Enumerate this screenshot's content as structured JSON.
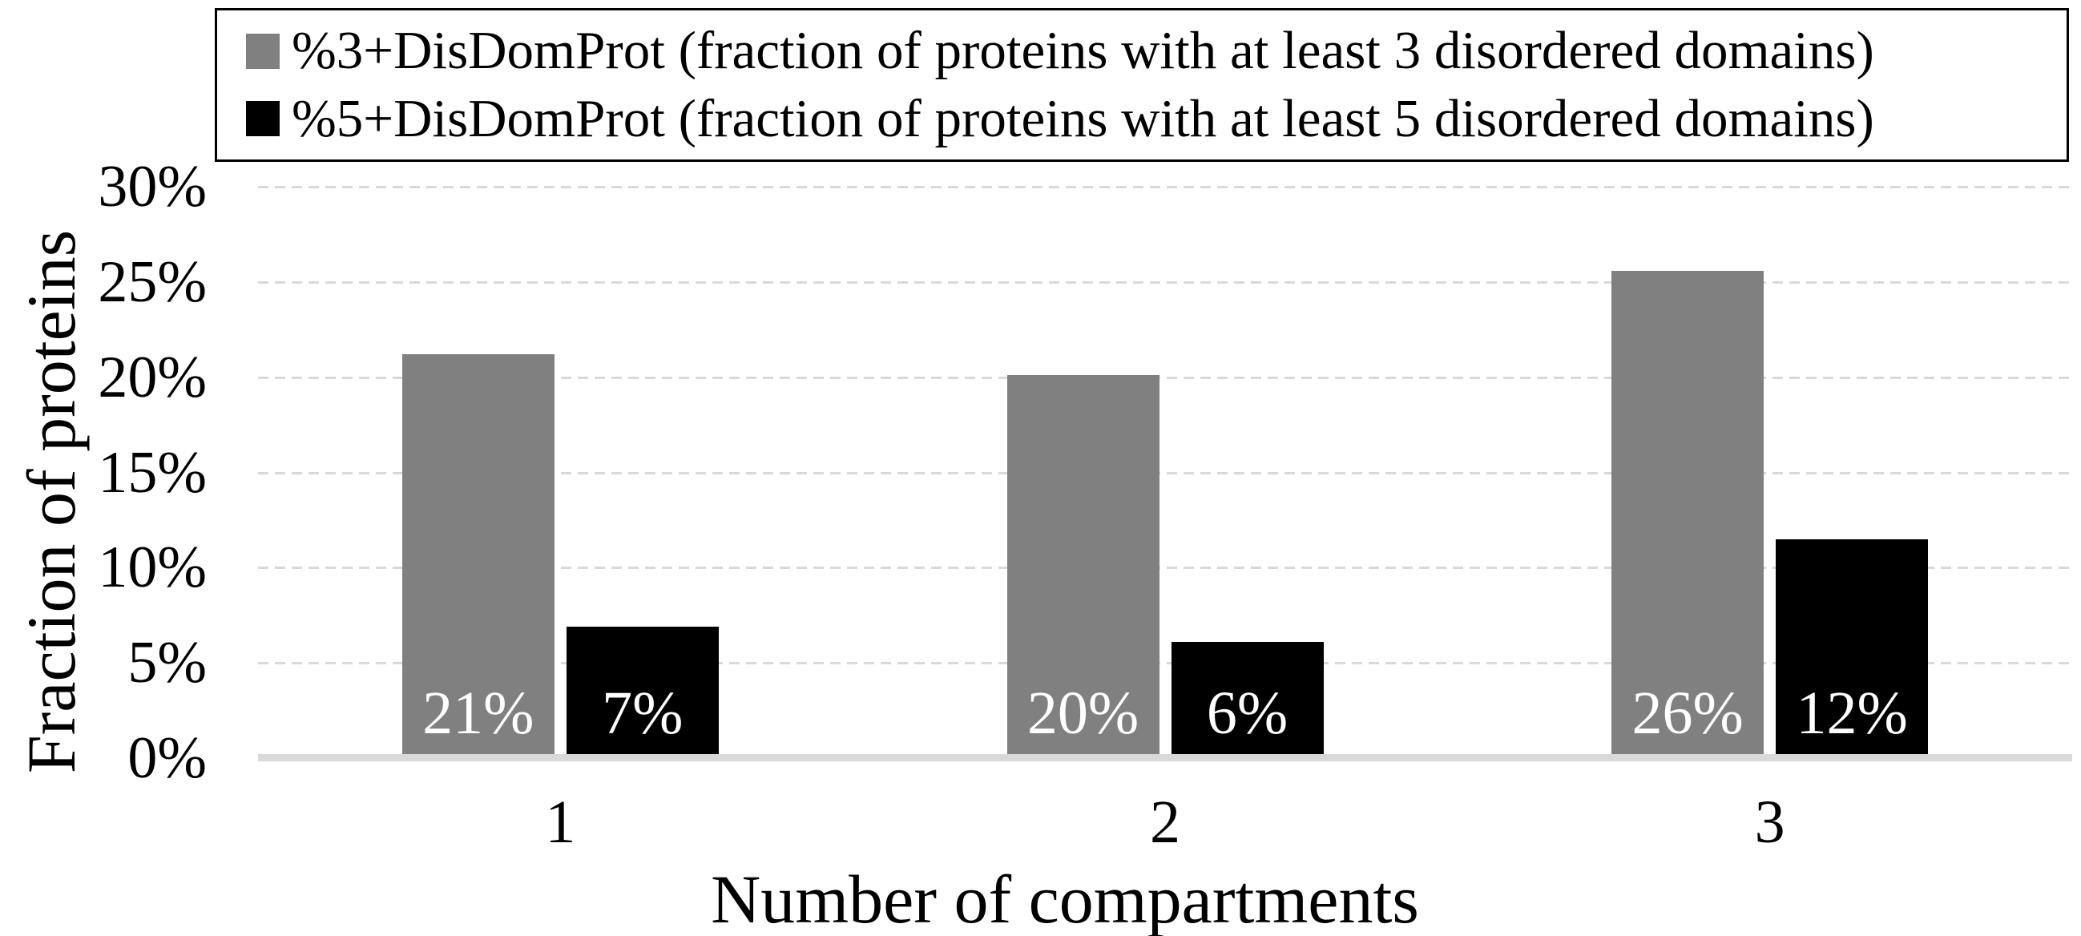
{
  "chart_data": {
    "type": "bar",
    "categories": [
      "1",
      "2",
      "3"
    ],
    "series": [
      {
        "name": "%3+DisDomProt (fraction of proteins with at least 3 disordered domains)",
        "color": "#808080",
        "values": [
          21.2,
          20.1,
          25.6
        ],
        "labels": [
          "21%",
          "20%",
          "26%"
        ]
      },
      {
        "name": "%5+DisDomProt (fraction of proteins with at least 5 disordered domains)",
        "color": "#000000",
        "values": [
          6.9,
          6.1,
          11.5
        ],
        "labels": [
          "7%",
          "6%",
          "12%"
        ]
      }
    ],
    "xlabel": "Number of compartments",
    "ylabel": "Fraction of proteins",
    "ylim": [
      0,
      30
    ],
    "ytick_step": 5,
    "ytick_labels": [
      "0%",
      "5%",
      "10%",
      "15%",
      "20%",
      "25%",
      "30%"
    ],
    "grid": "horizontal-dashed",
    "legend_position": "top",
    "colors": {
      "background": "#ffffff",
      "text": "#000000",
      "bar_label": "#ffffff",
      "gridline": "#d9d9d9",
      "baseline": "#d9d9d9",
      "legend_border": "#000000"
    }
  }
}
